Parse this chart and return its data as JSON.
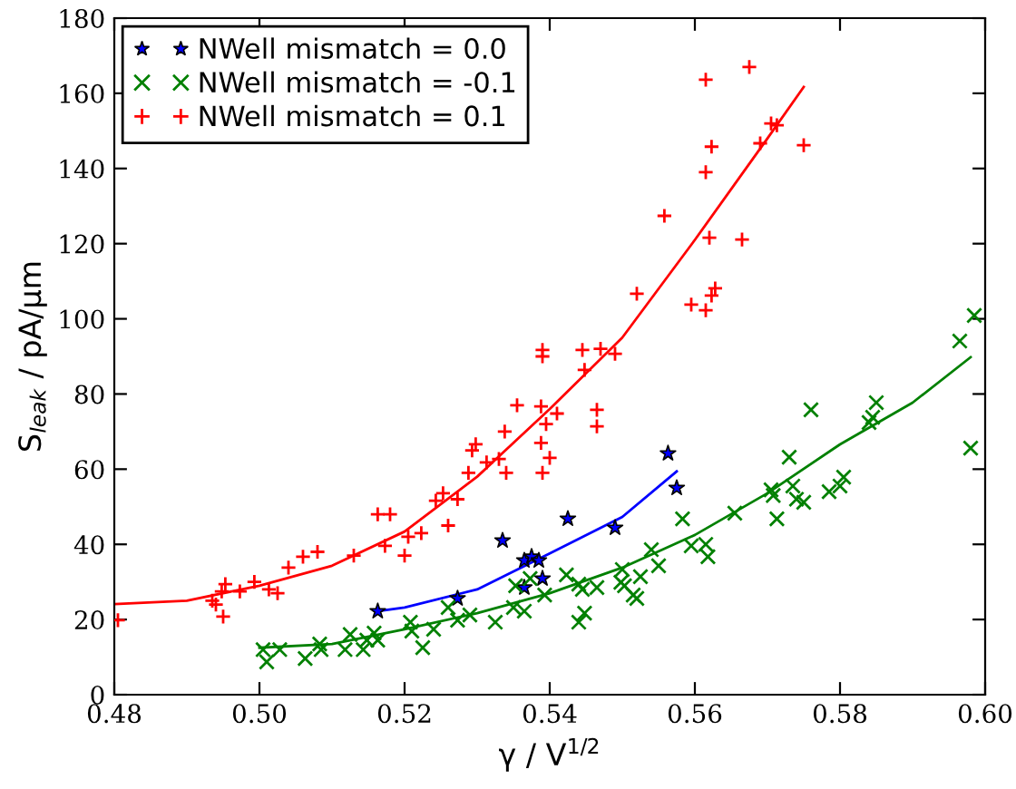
{
  "chart_data": {
    "type": "scatter",
    "xlabel": "γ / V$^{1/2}$",
    "ylabel": "S$_{leak}$ / pA/μm",
    "xlim": [
      0.48,
      0.6
    ],
    "xticks": [
      {
        "value": 0.48,
        "label": "0.48"
      },
      {
        "value": 0.5,
        "label": "0.50"
      },
      {
        "value": 0.52,
        "label": "0.52"
      },
      {
        "value": 0.54,
        "label": "0.54"
      },
      {
        "value": 0.56,
        "label": "0.56"
      },
      {
        "value": 0.58,
        "label": "0.58"
      },
      {
        "value": 0.6,
        "label": "0.60"
      }
    ],
    "ylim": [
      0,
      180
    ],
    "yticks": [
      0,
      20,
      40,
      60,
      80,
      100,
      120,
      140,
      160,
      180
    ],
    "grid": false,
    "legend": "top left",
    "series": [
      {
        "name": "NWell mismatch = 0.0",
        "marker": "star",
        "color": "#0000ff",
        "x": [
          0.5163,
          0.5273,
          0.5335,
          0.5365,
          0.5365,
          0.5375,
          0.538,
          0.5385,
          0.539,
          0.5425,
          0.549,
          0.5563,
          0.5575
        ],
        "values": [
          22.2,
          25.6,
          41,
          28.5,
          35.7,
          36.7,
          null,
          35.7,
          30.9,
          46.8,
          44.4,
          64.2,
          55
        ]
      },
      {
        "name": "NWell mismatch = -0.1",
        "marker": "cross",
        "color": "#008000",
        "x": [
          0.5005,
          0.501,
          0.5028,
          0.5063,
          0.5083,
          0.5085,
          0.5118,
          0.5125,
          0.5143,
          0.5148,
          0.5158,
          0.5163,
          0.5208,
          0.521,
          0.5225,
          0.524,
          0.526,
          0.5273,
          0.529,
          0.5325,
          0.535,
          0.5365,
          0.5353,
          0.5373,
          0.5393,
          0.5423,
          0.544,
          0.5445,
          0.544,
          0.5448,
          0.5465,
          0.55,
          0.5498,
          0.5503,
          0.5515,
          0.552,
          0.5525,
          0.554,
          0.555,
          0.5583,
          0.5595,
          0.5615,
          0.5618,
          0.5655,
          0.5705,
          0.5708,
          0.5713,
          0.573,
          0.5735,
          0.574,
          0.575,
          0.576,
          0.5785,
          0.58,
          0.5805,
          0.584,
          0.5845,
          0.585,
          0.5965,
          0.598,
          0.5985
        ],
        "values": [
          12,
          8.7,
          12,
          9.6,
          13.5,
          12,
          12,
          16,
          12,
          14.5,
          16.4,
          14.5,
          19.3,
          16.9,
          12.5,
          17.4,
          23.2,
          19.8,
          21.2,
          19.3,
          23.2,
          22.2,
          29,
          30.9,
          26.5,
          31.9,
          29.4,
          28,
          19.3,
          21.7,
          28.5,
          33.3,
          29.9,
          29,
          26.5,
          25.6,
          31.4,
          38.6,
          34.3,
          46.8,
          39.6,
          40,
          36.7,
          48.3,
          54.5,
          53,
          46.8,
          63.2,
          55.5,
          52,
          51.2,
          75.8,
          54,
          55.5,
          57.9,
          72.4,
          73.8,
          77.7,
          94.1,
          65.6,
          100.9
        ]
      },
      {
        "name": "NWell mismatch = 0.1",
        "marker": "plus",
        "color": "#ff0000",
        "x": [
          0.4805,
          0.4935,
          0.494,
          0.4948,
          0.4953,
          0.495,
          0.4973,
          0.4993,
          0.5013,
          0.5025,
          0.504,
          0.506,
          0.508,
          0.513,
          0.5163,
          0.518,
          0.5173,
          0.52,
          0.5205,
          0.5223,
          0.5243,
          0.5253,
          0.526,
          0.5273,
          0.5288,
          0.5293,
          0.5298,
          0.5313,
          0.533,
          0.5338,
          0.534,
          0.5355,
          0.539,
          0.539,
          0.5388,
          0.5388,
          0.539,
          0.54,
          0.5395,
          0.541,
          0.5445,
          0.5448,
          0.547,
          0.549,
          0.5465,
          0.5465,
          0.552,
          0.5558,
          0.5595,
          0.5615,
          0.5623,
          0.5628,
          0.5615,
          0.5623,
          0.5615,
          0.562,
          0.5665,
          0.5675,
          0.569,
          0.5705,
          0.5713,
          0.575
        ],
        "values": [
          19.8,
          25,
          24,
          27.5,
          29.4,
          20.8,
          27.5,
          30,
          28,
          27,
          33.8,
          36.7,
          38,
          37,
          48,
          48,
          39.6,
          37,
          42,
          43,
          51.6,
          53.6,
          45,
          52,
          59,
          65,
          66.6,
          61.8,
          62.7,
          70,
          59,
          77,
          90,
          91.7,
          76.7,
          67,
          59,
          63,
          72,
          74.8,
          91.7,
          86.4,
          92,
          90.7,
          75.8,
          71.4,
          106.7,
          127.4,
          103.8,
          102.3,
          106.2,
          108.1,
          139,
          145.8,
          163.6,
          121.6,
          121.1,
          167,
          146.7,
          152,
          151.5,
          146.2
        ]
      },
      {
        "type": "line",
        "marker": "none",
        "color": "#0000ff",
        "x": [
          0.5163,
          0.52,
          0.53,
          0.54,
          0.55,
          0.5575
        ],
        "values": [
          22.2,
          23.2,
          28,
          37.6,
          47.3,
          59.4
        ]
      },
      {
        "type": "line",
        "marker": "none",
        "color": "#008000",
        "x": [
          0.5,
          0.51,
          0.52,
          0.53,
          0.54,
          0.55,
          0.56,
          0.57,
          0.58,
          0.59,
          0.598
        ],
        "values": [
          12.5,
          13.5,
          17.4,
          21.7,
          27,
          33.8,
          42.5,
          53.6,
          66.6,
          77.7,
          89.8
        ]
      },
      {
        "type": "line",
        "marker": "none",
        "color": "#ff0000",
        "x": [
          0.48,
          0.49,
          0.5,
          0.51,
          0.52,
          0.53,
          0.54,
          0.55,
          0.56,
          0.57,
          0.575
        ],
        "values": [
          24.1,
          25,
          29,
          34.3,
          43.4,
          58,
          76,
          95,
          121,
          148,
          161.7
        ]
      }
    ]
  }
}
